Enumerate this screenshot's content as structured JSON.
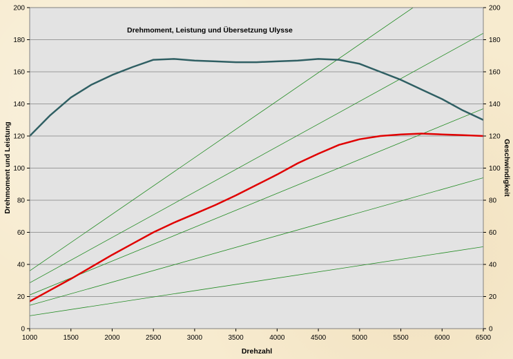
{
  "chart_data": {
    "type": "line",
    "title": "Drehmoment, Leistung und Übersetzung Ulysse",
    "xlabel": "Drehzahl",
    "ylabel": "Drehmoment und Leistung",
    "y2label": "Geschwindigkeit",
    "xlim": [
      1000,
      6500
    ],
    "ylim": [
      0,
      200
    ],
    "y2lim": [
      0,
      200
    ],
    "xticks": [
      1000,
      1500,
      2000,
      2500,
      3000,
      3500,
      4000,
      4500,
      5000,
      5500,
      6000,
      6500
    ],
    "yticks": [
      0,
      20,
      40,
      60,
      80,
      100,
      120,
      140,
      160,
      180,
      200
    ],
    "y2ticks": [
      0,
      20,
      40,
      60,
      80,
      100,
      120,
      140,
      160,
      180,
      200
    ],
    "grid": "horizontal",
    "background": "#e3e3e3",
    "series": [
      {
        "color": "#2f5f63",
        "x": [
          1000,
          1250,
          1500,
          1750,
          2000,
          2250,
          2500,
          2750,
          3000,
          3250,
          3500,
          3750,
          4000,
          4250,
          4500,
          4750,
          5000,
          5250,
          5500,
          5750,
          6000,
          6250,
          6500
        ],
        "y": [
          120,
          133,
          144,
          152,
          158,
          163,
          167.5,
          168,
          167,
          166.5,
          166,
          166,
          166.5,
          167,
          168,
          167.5,
          165,
          160,
          155,
          149,
          143,
          136,
          130
        ]
      },
      {
        "color": "#e00000",
        "x": [
          1000,
          1250,
          1500,
          1750,
          2000,
          2250,
          2500,
          2750,
          3000,
          3250,
          3500,
          3750,
          4000,
          4250,
          4500,
          4750,
          5000,
          5250,
          5500,
          5750,
          6000,
          6250,
          6500
        ],
        "y": [
          17,
          24,
          31,
          38.5,
          46,
          53,
          60,
          66,
          71.5,
          77,
          83,
          89.5,
          96,
          103,
          109,
          114.5,
          118,
          120,
          121,
          121.5,
          121,
          120.5,
          120
        ]
      },
      {
        "color": "#1f8a1f",
        "axis": "right",
        "x": [
          1000,
          6500
        ],
        "y": [
          36,
          230
        ]
      },
      {
        "color": "#1f8a1f",
        "axis": "right",
        "x": [
          1000,
          6500
        ],
        "y": [
          28.5,
          184
        ]
      },
      {
        "color": "#1f8a1f",
        "axis": "right",
        "x": [
          1000,
          6500
        ],
        "y": [
          21,
          137
        ]
      },
      {
        "color": "#1f8a1f",
        "axis": "right",
        "x": [
          1000,
          6500
        ],
        "y": [
          14.5,
          94
        ]
      },
      {
        "color": "#1f8a1f",
        "axis": "right",
        "x": [
          1000,
          6500
        ],
        "y": [
          8,
          51
        ]
      }
    ]
  }
}
